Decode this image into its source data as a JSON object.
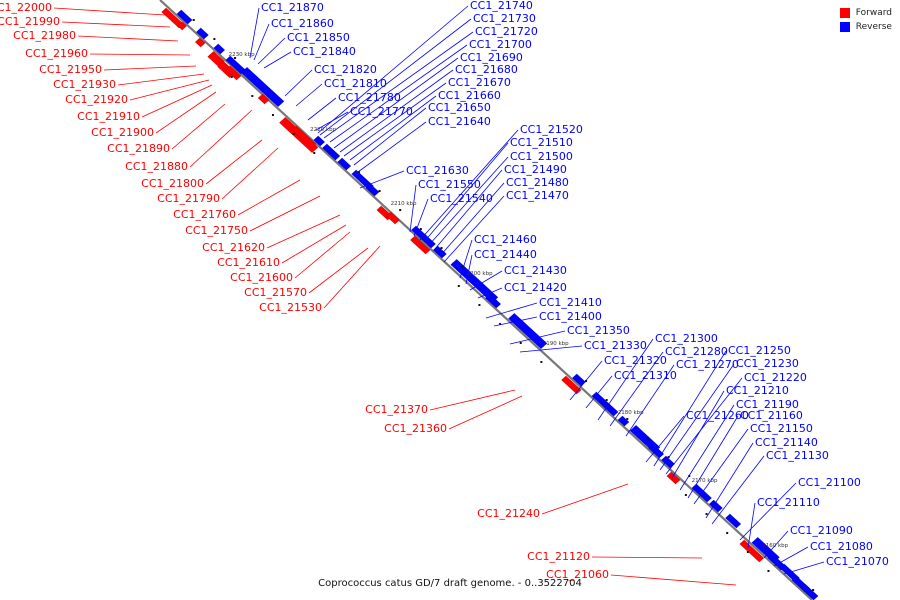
{
  "legend": {
    "forward": {
      "label": "Forward",
      "color": "#ff0000"
    },
    "reverse": {
      "label": "Reverse",
      "color": "#0000ff"
    }
  },
  "caption": "Coprococcus catus GD/7 draft genome. - 0..3522704",
  "kbp_ticks": [
    "2230 kbp",
    "2220 kbp",
    "2210 kbp",
    "2200 kbp",
    "2190 kbp",
    "2180 kbp",
    "2170 kbp",
    "2160 kbp"
  ],
  "forward_labels": [
    "CC1_22000",
    "CC1_21990",
    "CC1_21980",
    "CC1_21960",
    "CC1_21950",
    "CC1_21930",
    "CC1_21920",
    "CC1_21910",
    "CC1_21900",
    "CC1_21890",
    "CC1_21880",
    "CC1_21800",
    "CC1_21790",
    "CC1_21760",
    "CC1_21750",
    "CC1_21620",
    "CC1_21610",
    "CC1_21600",
    "CC1_21570",
    "CC1_21530",
    "CC1_21370",
    "CC1_21360",
    "CC1_21240",
    "CC1_21120",
    "CC1_21060"
  ],
  "reverse_labels": [
    "CC1_21870",
    "CC1_21860",
    "CC1_21850",
    "CC1_21840",
    "CC1_21820",
    "CC1_21810",
    "CC1_21780",
    "CC1_21770",
    "CC1_21740",
    "CC1_21730",
    "CC1_21720",
    "CC1_21700",
    "CC1_21690",
    "CC1_21680",
    "CC1_21670",
    "CC1_21660",
    "CC1_21650",
    "CC1_21640",
    "CC1_21630",
    "CC1_21550",
    "CC1_21540",
    "CC1_21520",
    "CC1_21510",
    "CC1_21500",
    "CC1_21490",
    "CC1_21480",
    "CC1_21470",
    "CC1_21460",
    "CC1_21440",
    "CC1_21430",
    "CC1_21420",
    "CC1_21410",
    "CC1_21400",
    "CC1_21350",
    "CC1_21330",
    "CC1_21320",
    "CC1_21310",
    "CC1_21300",
    "CC1_21280",
    "CC1_21270",
    "CC1_21260",
    "CC1_21250",
    "CC1_21230",
    "CC1_21220",
    "CC1_21210",
    "CC1_21190",
    "CC1_21160",
    "CC1_21150",
    "CC1_21140",
    "CC1_21130",
    "CC1_21100",
    "CC1_21110",
    "CC1_21090",
    "CC1_21080",
    "CC1_21070"
  ]
}
